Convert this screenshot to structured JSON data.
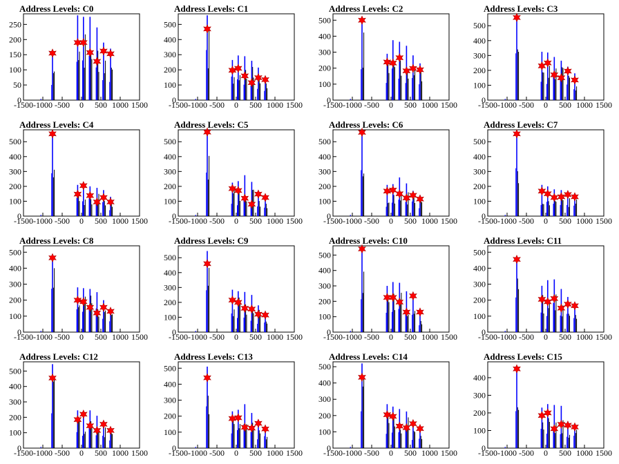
{
  "chart_data": [
    {
      "type": "bar",
      "title": "Address Levels: C0",
      "xlim": [
        -1500,
        1500
      ],
      "ylim": [
        0,
        285
      ],
      "yticks": [
        0,
        50,
        100,
        150,
        200,
        250
      ],
      "xticks": [
        -1500,
        -1000,
        -500,
        0,
        500,
        1000,
        1500
      ],
      "peaks": [
        {
          "x": -750,
          "y": 155,
          "blue": 150
        },
        {
          "x": -100,
          "y": 190,
          "blue": 280
        },
        {
          "x": 50,
          "y": 190,
          "blue": 275
        },
        {
          "x": 220,
          "y": 157,
          "blue": 275
        },
        {
          "x": 400,
          "y": 128,
          "blue": 240
        },
        {
          "x": 570,
          "y": 162,
          "blue": 190
        },
        {
          "x": 750,
          "y": 153,
          "blue": 170
        }
      ]
    },
    {
      "type": "bar",
      "title": "Address Levels: C1",
      "xlim": [
        -1500,
        1500
      ],
      "ylim": [
        0,
        570
      ],
      "yticks": [
        0,
        100,
        200,
        300,
        400,
        500
      ],
      "xticks": [
        -1500,
        -1000,
        -500,
        0,
        500,
        1000,
        1500
      ],
      "peaks": [
        {
          "x": -750,
          "y": 470,
          "blue": 560
        },
        {
          "x": -100,
          "y": 197,
          "blue": 265
        },
        {
          "x": 50,
          "y": 210,
          "blue": 295
        },
        {
          "x": 220,
          "y": 160,
          "blue": 290
        },
        {
          "x": 400,
          "y": 115,
          "blue": 260
        },
        {
          "x": 570,
          "y": 148,
          "blue": 215
        },
        {
          "x": 750,
          "y": 135,
          "blue": 150
        }
      ]
    },
    {
      "type": "bar",
      "title": "Address Levels: C2",
      "xlim": [
        -1500,
        1500
      ],
      "ylim": [
        0,
        540
      ],
      "yticks": [
        0,
        100,
        200,
        300,
        400,
        500
      ],
      "xticks": [
        -1500,
        -1000,
        -500,
        0,
        500,
        1000,
        1500
      ],
      "peaks": [
        {
          "x": -750,
          "y": 500,
          "blue": 520
        },
        {
          "x": -100,
          "y": 238,
          "blue": 290
        },
        {
          "x": 50,
          "y": 232,
          "blue": 375
        },
        {
          "x": 220,
          "y": 265,
          "blue": 365
        },
        {
          "x": 400,
          "y": 183,
          "blue": 340
        },
        {
          "x": 570,
          "y": 198,
          "blue": 280
        },
        {
          "x": 750,
          "y": 190,
          "blue": 230
        }
      ]
    },
    {
      "type": "bar",
      "title": "Address Levels: C3",
      "xlim": [
        -1500,
        1500
      ],
      "ylim": [
        0,
        580
      ],
      "yticks": [
        0,
        100,
        200,
        300,
        400,
        500
      ],
      "xticks": [
        -1500,
        -1000,
        -500,
        0,
        500,
        1000,
        1500
      ],
      "peaks": [
        {
          "x": -750,
          "y": 555,
          "blue": 570
        },
        {
          "x": -100,
          "y": 230,
          "blue": 325
        },
        {
          "x": 50,
          "y": 250,
          "blue": 320
        },
        {
          "x": 220,
          "y": 170,
          "blue": 290
        },
        {
          "x": 400,
          "y": 150,
          "blue": 265
        },
        {
          "x": 570,
          "y": 195,
          "blue": 225
        },
        {
          "x": 750,
          "y": 135,
          "blue": 180
        }
      ]
    },
    {
      "type": "bar",
      "title": "Address Levels: C4",
      "xlim": [
        -1500,
        1500
      ],
      "ylim": [
        0,
        580
      ],
      "yticks": [
        0,
        100,
        200,
        300,
        400,
        500
      ],
      "xticks": [
        -1500,
        -1000,
        -500,
        0,
        500,
        1000,
        1500
      ],
      "peaks": [
        {
          "x": -750,
          "y": 553,
          "blue": 570
        },
        {
          "x": -100,
          "y": 148,
          "blue": 210
        },
        {
          "x": 50,
          "y": 205,
          "blue": 210
        },
        {
          "x": 220,
          "y": 138,
          "blue": 200
        },
        {
          "x": 400,
          "y": 95,
          "blue": 190
        },
        {
          "x": 570,
          "y": 125,
          "blue": 175
        },
        {
          "x": 750,
          "y": 95,
          "blue": 130
        }
      ]
    },
    {
      "type": "bar",
      "title": "Address Levels: C5",
      "xlim": [
        -1500,
        1500
      ],
      "ylim": [
        0,
        580
      ],
      "yticks": [
        0,
        100,
        200,
        300,
        400,
        500
      ],
      "xticks": [
        -1500,
        -1000,
        -500,
        0,
        500,
        1000,
        1500
      ],
      "peaks": [
        {
          "x": -750,
          "y": 565,
          "blue": 575
        },
        {
          "x": -100,
          "y": 185,
          "blue": 225
        },
        {
          "x": 50,
          "y": 172,
          "blue": 235
        },
        {
          "x": 220,
          "y": 120,
          "blue": 275
        },
        {
          "x": 400,
          "y": 80,
          "blue": 230
        },
        {
          "x": 570,
          "y": 148,
          "blue": 170
        },
        {
          "x": 750,
          "y": 125,
          "blue": 140
        }
      ]
    },
    {
      "type": "bar",
      "title": "Address Levels: C6",
      "xlim": [
        -1500,
        1500
      ],
      "ylim": [
        0,
        580
      ],
      "yticks": [
        0,
        100,
        200,
        300,
        400,
        500
      ],
      "xticks": [
        -1500,
        -1000,
        -500,
        0,
        500,
        1000,
        1500
      ],
      "peaks": [
        {
          "x": -750,
          "y": 563,
          "blue": 575
        },
        {
          "x": -100,
          "y": 168,
          "blue": 210
        },
        {
          "x": 50,
          "y": 175,
          "blue": 215
        },
        {
          "x": 220,
          "y": 150,
          "blue": 260
        },
        {
          "x": 400,
          "y": 122,
          "blue": 220
        },
        {
          "x": 570,
          "y": 140,
          "blue": 170
        },
        {
          "x": 750,
          "y": 115,
          "blue": 140
        }
      ]
    },
    {
      "type": "bar",
      "title": "Address Levels: C7",
      "xlim": [
        -1500,
        1500
      ],
      "ylim": [
        0,
        580
      ],
      "yticks": [
        0,
        100,
        200,
        300,
        400,
        500
      ],
      "xticks": [
        -1500,
        -1000,
        -500,
        0,
        500,
        1000,
        1500
      ],
      "peaks": [
        {
          "x": -750,
          "y": 553,
          "blue": 570
        },
        {
          "x": -100,
          "y": 168,
          "blue": 210
        },
        {
          "x": 50,
          "y": 150,
          "blue": 200
        },
        {
          "x": 220,
          "y": 125,
          "blue": 180
        },
        {
          "x": 400,
          "y": 130,
          "blue": 175
        },
        {
          "x": 570,
          "y": 145,
          "blue": 150
        },
        {
          "x": 750,
          "y": 130,
          "blue": 140
        }
      ]
    },
    {
      "type": "bar",
      "title": "Address Levels: C8",
      "xlim": [
        -1500,
        1500
      ],
      "ylim": [
        0,
        540
      ],
      "yticks": [
        0,
        100,
        200,
        300,
        400,
        500
      ],
      "xticks": [
        -1500,
        -1000,
        -500,
        0,
        500,
        1000,
        1500
      ],
      "peaks": [
        {
          "x": -750,
          "y": 465,
          "blue": 480
        },
        {
          "x": -100,
          "y": 200,
          "blue": 280
        },
        {
          "x": 50,
          "y": 190,
          "blue": 275
        },
        {
          "x": 220,
          "y": 155,
          "blue": 270
        },
        {
          "x": 400,
          "y": 120,
          "blue": 250
        },
        {
          "x": 570,
          "y": 155,
          "blue": 200
        },
        {
          "x": 750,
          "y": 130,
          "blue": 150
        }
      ]
    },
    {
      "type": "bar",
      "title": "Address Levels: C9",
      "xlim": [
        -1500,
        1500
      ],
      "ylim": [
        0,
        580
      ],
      "yticks": [
        0,
        100,
        200,
        300,
        400,
        500
      ],
      "xticks": [
        -1500,
        -1000,
        -500,
        0,
        500,
        1000,
        1500
      ],
      "peaks": [
        {
          "x": -750,
          "y": 460,
          "blue": 545
        },
        {
          "x": -100,
          "y": 215,
          "blue": 285
        },
        {
          "x": 50,
          "y": 200,
          "blue": 275
        },
        {
          "x": 220,
          "y": 160,
          "blue": 270
        },
        {
          "x": 400,
          "y": 155,
          "blue": 250
        },
        {
          "x": 570,
          "y": 120,
          "blue": 180
        },
        {
          "x": 750,
          "y": 115,
          "blue": 130
        }
      ]
    },
    {
      "type": "bar",
      "title": "Address Levels: C10",
      "xlim": [
        -1500,
        1500
      ],
      "ylim": [
        0,
        560
      ],
      "yticks": [
        0,
        100,
        200,
        300,
        400,
        500
      ],
      "xticks": [
        -1500,
        -1000,
        -500,
        0,
        500,
        1000,
        1500
      ],
      "peaks": [
        {
          "x": -750,
          "y": 540,
          "blue": 545
        },
        {
          "x": -100,
          "y": 225,
          "blue": 300
        },
        {
          "x": 50,
          "y": 225,
          "blue": 325
        },
        {
          "x": 220,
          "y": 195,
          "blue": 320
        },
        {
          "x": 400,
          "y": 130,
          "blue": 265
        },
        {
          "x": 570,
          "y": 235,
          "blue": 250
        },
        {
          "x": 750,
          "y": 130,
          "blue": 140
        }
      ]
    },
    {
      "type": "bar",
      "title": "Address Levels: C11",
      "xlim": [
        -1500,
        1500
      ],
      "ylim": [
        0,
        540
      ],
      "yticks": [
        0,
        100,
        200,
        300,
        400,
        500
      ],
      "xticks": [
        -1500,
        -1000,
        -500,
        0,
        500,
        1000,
        1500
      ],
      "peaks": [
        {
          "x": -750,
          "y": 455,
          "blue": 465
        },
        {
          "x": -100,
          "y": 205,
          "blue": 290
        },
        {
          "x": 50,
          "y": 190,
          "blue": 325
        },
        {
          "x": 220,
          "y": 210,
          "blue": 330
        },
        {
          "x": 400,
          "y": 150,
          "blue": 270
        },
        {
          "x": 570,
          "y": 175,
          "blue": 220
        },
        {
          "x": 750,
          "y": 165,
          "blue": 180
        }
      ]
    },
    {
      "type": "bar",
      "title": "Address Levels: C12",
      "xlim": [
        -1500,
        1500
      ],
      "ylim": [
        0,
        560
      ],
      "yticks": [
        0,
        100,
        200,
        300,
        400,
        500
      ],
      "xticks": [
        -1500,
        -1000,
        -500,
        0,
        500,
        1000,
        1500
      ],
      "peaks": [
        {
          "x": -750,
          "y": 455,
          "blue": 545
        },
        {
          "x": -100,
          "y": 185,
          "blue": 245
        },
        {
          "x": 50,
          "y": 220,
          "blue": 235
        },
        {
          "x": 220,
          "y": 145,
          "blue": 245
        },
        {
          "x": 400,
          "y": 115,
          "blue": 210
        },
        {
          "x": 570,
          "y": 155,
          "blue": 165
        },
        {
          "x": 750,
          "y": 115,
          "blue": 130
        }
      ]
    },
    {
      "type": "bar",
      "title": "Address Levels: C13",
      "xlim": [
        -1500,
        1500
      ],
      "ylim": [
        0,
        540
      ],
      "yticks": [
        0,
        100,
        200,
        300,
        400,
        500
      ],
      "xticks": [
        -1500,
        -1000,
        -500,
        0,
        500,
        1000,
        1500
      ],
      "peaks": [
        {
          "x": -750,
          "y": 440,
          "blue": 510
        },
        {
          "x": -100,
          "y": 185,
          "blue": 230
        },
        {
          "x": 50,
          "y": 190,
          "blue": 240
        },
        {
          "x": 220,
          "y": 130,
          "blue": 275
        },
        {
          "x": 400,
          "y": 125,
          "blue": 220
        },
        {
          "x": 570,
          "y": 155,
          "blue": 170
        },
        {
          "x": 750,
          "y": 120,
          "blue": 130
        }
      ]
    },
    {
      "type": "bar",
      "title": "Address Levels: C14",
      "xlim": [
        -1500,
        1500
      ],
      "ylim": [
        0,
        530
      ],
      "yticks": [
        0,
        100,
        200,
        300,
        400,
        500
      ],
      "xticks": [
        -1500,
        -1000,
        -500,
        0,
        500,
        1000,
        1500
      ],
      "peaks": [
        {
          "x": -750,
          "y": 435,
          "blue": 520
        },
        {
          "x": -100,
          "y": 205,
          "blue": 270
        },
        {
          "x": 50,
          "y": 195,
          "blue": 255
        },
        {
          "x": 220,
          "y": 135,
          "blue": 240
        },
        {
          "x": 400,
          "y": 125,
          "blue": 225
        },
        {
          "x": 570,
          "y": 150,
          "blue": 160
        },
        {
          "x": 750,
          "y": 120,
          "blue": 130
        }
      ]
    },
    {
      "type": "bar",
      "title": "Address Levels: C15",
      "xlim": [
        -1500,
        1500
      ],
      "ylim": [
        0,
        490
      ],
      "yticks": [
        0,
        100,
        200,
        300,
        400
      ],
      "xticks": [
        -1500,
        -1000,
        -500,
        0,
        500,
        1000,
        1500
      ],
      "peaks": [
        {
          "x": -750,
          "y": 450,
          "blue": 460
        },
        {
          "x": -100,
          "y": 185,
          "blue": 230
        },
        {
          "x": 50,
          "y": 200,
          "blue": 250
        },
        {
          "x": 220,
          "y": 110,
          "blue": 245
        },
        {
          "x": 400,
          "y": 135,
          "blue": 240
        },
        {
          "x": 570,
          "y": 130,
          "blue": 150
        },
        {
          "x": 750,
          "y": 120,
          "blue": 125
        }
      ]
    }
  ],
  "colors": {
    "hist_blue": "#0000ff",
    "hist_black": "#000000",
    "marker_red": "#ff0000",
    "axis": "#000000"
  },
  "marker": "red-star-polymarker"
}
